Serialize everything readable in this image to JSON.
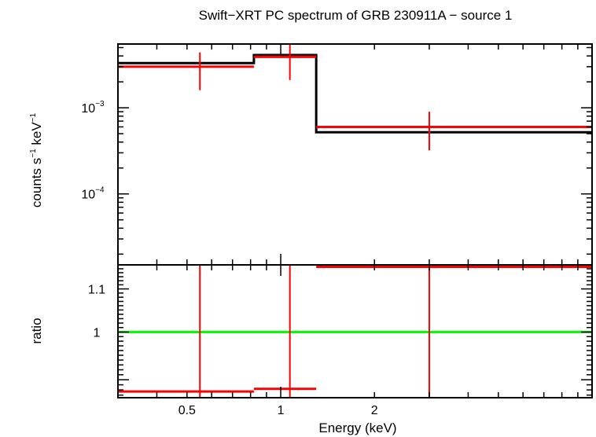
{
  "chart_data": [
    {
      "type": "line",
      "panel": "spectrum",
      "title": "Swift−XRT PC spectrum of GRB 230911A − source 1",
      "xlabel": "",
      "ylabel_base": "counts s",
      "ylabel_sup1": "−1",
      "ylabel_mid": " keV",
      "ylabel_sup2": "−1",
      "x_scale": "log",
      "y_scale": "log",
      "xlim": [
        0.3,
        10
      ],
      "ylim": [
        1.5e-05,
        0.0055
      ],
      "y_ticks": [
        {
          "value": 0.001,
          "base": "10",
          "exp": "−3"
        },
        {
          "value": 0.0001,
          "base": "10",
          "exp": "−4"
        }
      ],
      "series": [
        {
          "role": "model",
          "color": "#000000",
          "steps": [
            {
              "x0": 0.3,
              "x1": 0.82,
              "y": 0.0033
            },
            {
              "x0": 0.82,
              "x1": 1.3,
              "y": 0.0041
            },
            {
              "x0": 1.3,
              "x1": 10,
              "y": 0.00052
            }
          ]
        },
        {
          "role": "data",
          "color": "#ff0000",
          "points": [
            {
              "x": 0.55,
              "xlo": 0.3,
              "xhi": 0.82,
              "y": 0.003,
              "ylo": 0.0016,
              "yhi": 0.0044
            },
            {
              "x": 1.07,
              "xlo": 0.82,
              "xhi": 1.3,
              "y": 0.0039,
              "ylo": 0.0021,
              "yhi": 0.0055
            },
            {
              "x": 3.0,
              "xlo": 1.3,
              "xhi": 10,
              "y": 0.0006,
              "ylo": 0.00032,
              "yhi": 0.0009
            }
          ]
        }
      ],
      "grid": false,
      "legend": "none"
    },
    {
      "type": "line",
      "panel": "ratio",
      "xlabel": "Energy (keV)",
      "ylabel": "ratio",
      "x_scale": "log",
      "y_scale": "log",
      "xlim": [
        0.3,
        10
      ],
      "ylim": [
        0.865,
        1.16
      ],
      "x_ticks": [
        {
          "value": 0.5,
          "label": "0.5"
        },
        {
          "value": 1,
          "label": "1"
        },
        {
          "value": 2,
          "label": "2"
        }
      ],
      "y_ticks": [
        {
          "value": 1,
          "label": "1"
        },
        {
          "value": 1.1,
          "label": "1.1"
        }
      ],
      "reference_line": {
        "y": 1,
        "color": "#00ff00"
      },
      "series": [
        {
          "role": "data",
          "color": "#ff0000",
          "points": [
            {
              "x": 0.55,
              "xlo": 0.3,
              "xhi": 0.82,
              "y": 0.877,
              "ylo": 0.865,
              "yhi": 1.16
            },
            {
              "x": 1.07,
              "xlo": 0.82,
              "xhi": 1.3,
              "y": 0.882,
              "ylo": 0.865,
              "yhi": 1.16
            },
            {
              "x": 3.0,
              "xlo": 1.3,
              "xhi": 10,
              "y": 1.155,
              "ylo": 0.865,
              "yhi": 1.16
            }
          ]
        }
      ],
      "grid": false,
      "legend": "none"
    }
  ]
}
